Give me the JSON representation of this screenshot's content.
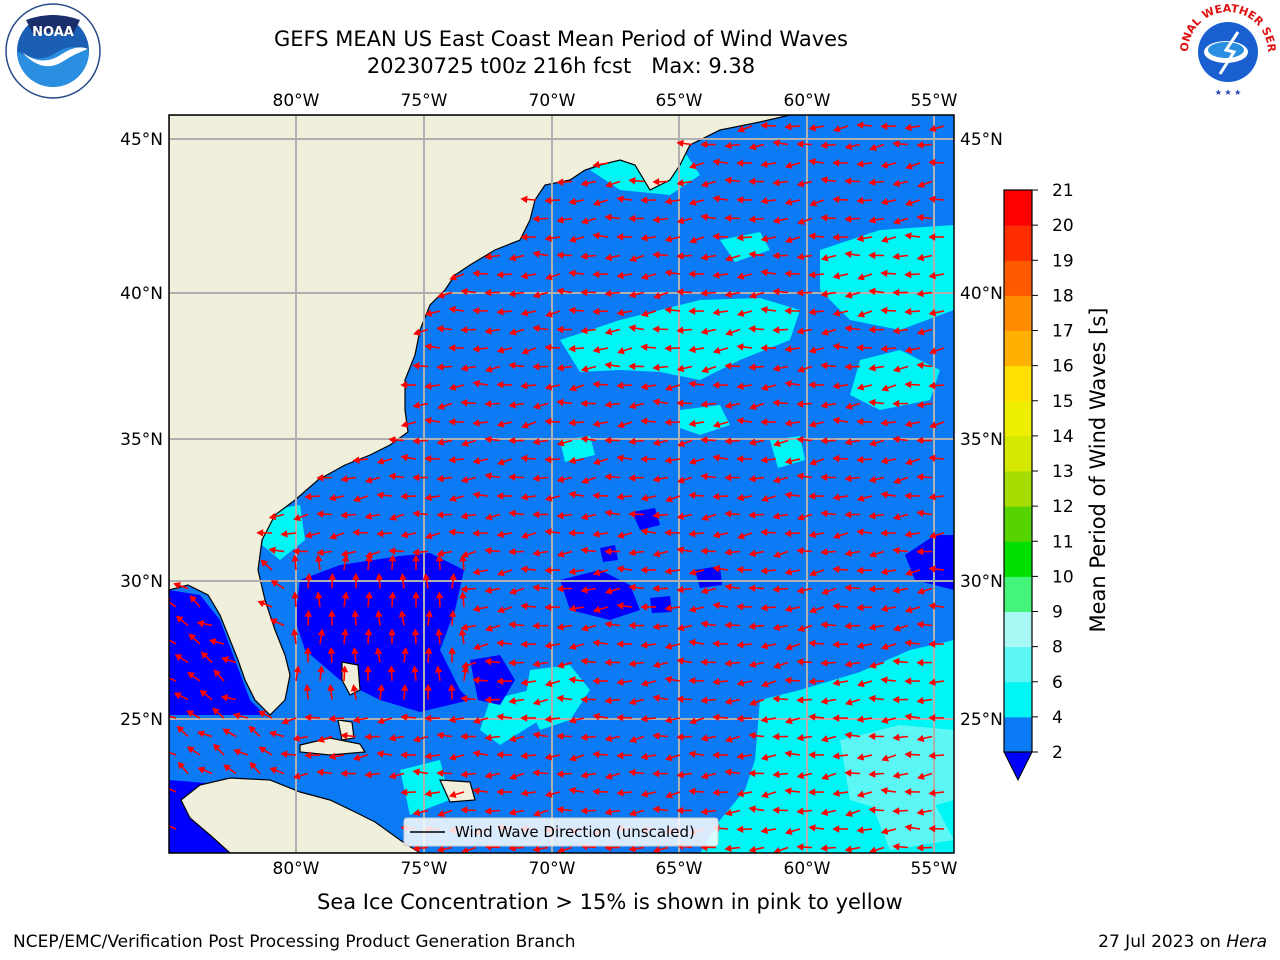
{
  "title": {
    "line1": "GEFS MEAN US East Coast Mean Period of Wind Waves",
    "line2": "20230725 t00z 216h fcst   Max: 9.38"
  },
  "footnote": "Sea Ice Concentration > 15% is shown in pink to yellow",
  "org": "NCEP/EMC/Verification Post Processing Product Generation Branch",
  "date_prefix": "27 Jul 2023 on ",
  "date_host": "Hera",
  "legend_label": "Wind Wave Direction (unscaled)",
  "colorbar": {
    "label": "Mean Period of Wind Waves [s]",
    "ticks": [
      "2",
      "4",
      "6",
      "8",
      "9",
      "10",
      "11",
      "12",
      "13",
      "14",
      "15",
      "16",
      "17",
      "18",
      "19",
      "20",
      "21"
    ],
    "colors": [
      "#0000ff",
      "#0a7af5",
      "#00f5f5",
      "#5cf7f5",
      "#a8f8f5",
      "#45f57a",
      "#00e000",
      "#55d400",
      "#a6dc00",
      "#d4e800",
      "#eeee00",
      "#ffe000",
      "#ffb000",
      "#ff8c00",
      "#ff5a00",
      "#ff2d00",
      "#ff0000"
    ]
  },
  "map": {
    "lon_labels": [
      "80°W",
      "75°W",
      "70°W",
      "65°W",
      "60°W",
      "55°W"
    ],
    "lat_labels": [
      "45°N",
      "40°N",
      "35°N",
      "30°N",
      "25°N"
    ],
    "land_color": "#efefdb",
    "arrow_color": "#ff0000"
  },
  "logos": {
    "noaa_text": "NOAA",
    "nws_text": "NATIONAL WEATHER SERVICE"
  }
}
